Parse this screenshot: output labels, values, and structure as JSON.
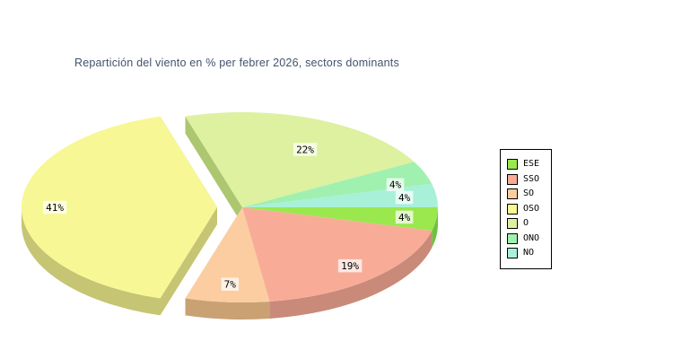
{
  "chart_data": {
    "type": "pie",
    "style": "3d-exploded",
    "title": "Repartición del viento en % per febrer 2026, sectors dominants",
    "title_color": "#42526B",
    "label_suffix": "%",
    "label_text_color": "#000000",
    "label_bg": "rgba(255,255,255,0.72)",
    "background": "#FFFFFF",
    "legend_position": "right",
    "start_angle_deg_clockwise_from_east": 0,
    "slices": [
      {
        "label": "ESE",
        "value": 4,
        "color": "#9AE84E",
        "side": "#6FC040",
        "exploded": false
      },
      {
        "label": "SSO",
        "value": 19,
        "color": "#F8AC98",
        "side": "#C98A79",
        "exploded": false
      },
      {
        "label": "SO",
        "value": 7,
        "color": "#FBCDA0",
        "side": "#C9A173",
        "exploded": false
      },
      {
        "label": "OSO",
        "value": 41,
        "color": "#F7F795",
        "side": "#C5C573",
        "exploded": true
      },
      {
        "label": "O",
        "value": 22,
        "color": "#DDF1A0",
        "side": "#ADC670",
        "exploded": false
      },
      {
        "label": "ONO",
        "value": 4,
        "color": "#A0F0B0",
        "side": "#82C892",
        "exploded": false
      },
      {
        "label": "NO",
        "value": 4,
        "color": "#A8F0D8",
        "side": "#88C8B0",
        "exploded": false
      }
    ]
  }
}
